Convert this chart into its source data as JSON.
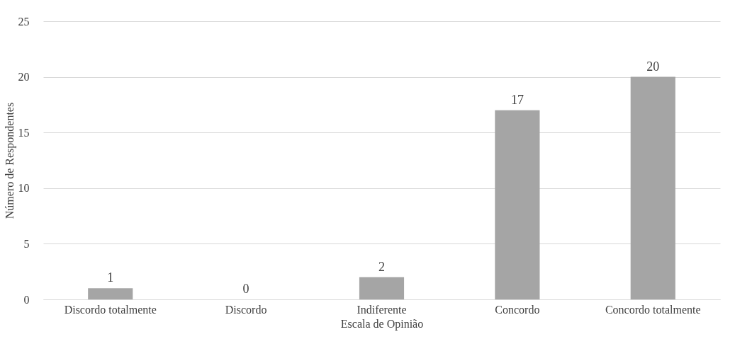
{
  "chart_data": {
    "type": "bar",
    "xlabel": "Escala de Opinião",
    "ylabel": "Número de Respondentes",
    "categories": [
      "Discordo totalmente",
      "Discordo",
      "Indiferente",
      "Concordo",
      "Concordo totalmente"
    ],
    "values": [
      1,
      0,
      2,
      17,
      20
    ],
    "color": "#a5a5a5",
    "ylim": [
      0,
      25
    ],
    "yticks": [
      0,
      5,
      10,
      15,
      20,
      25
    ],
    "grid": "y",
    "data_labels": true
  }
}
